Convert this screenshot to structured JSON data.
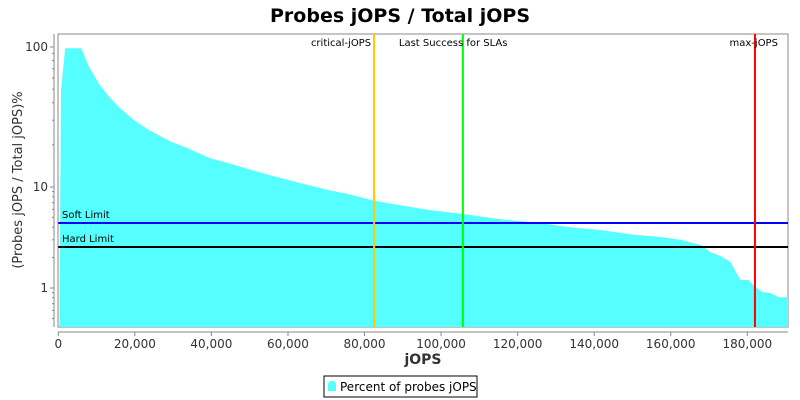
{
  "chart_data": {
    "type": "area",
    "title": "Probes jOPS / Total jOPS",
    "xlabel": "jOPS",
    "ylabel": "(Probes jOPS / Total jOPS)%",
    "xlim": [
      0,
      190650
    ],
    "ylim": [
      0.41,
      124
    ],
    "y_scale": "log",
    "x_ticks": [
      0,
      20000,
      40000,
      60000,
      80000,
      100000,
      120000,
      140000,
      160000,
      180000
    ],
    "x_tick_labels": [
      "0",
      "20,000",
      "40,000",
      "60,000",
      "80,000",
      "100,000",
      "120,000",
      "140,000",
      "160,000",
      "180,000"
    ],
    "y_ticks": [
      1,
      10,
      100
    ],
    "y_tick_labels": [
      "1",
      "10",
      "100"
    ],
    "grid": false,
    "legend_position": "bottom",
    "series": [
      {
        "name": "Percent of probes jOPS",
        "color": "#55ffff",
        "x": [
          300,
          700,
          1800,
          6000,
          7800,
          10700,
          13300,
          15900,
          19800,
          23700,
          29000,
          34200,
          39400,
          44600,
          49800,
          55000,
          60200,
          65500,
          70700,
          75900,
          82500,
          89300,
          97100,
          105700,
          115400,
          125900,
          133700,
          141600,
          149400,
          157300,
          162500,
          167700,
          170300,
          173000,
          175600,
          176900,
          178200,
          180300,
          182100,
          184000,
          186100,
          188200,
          190650
        ],
        "y": [
          0.41,
          49,
          98,
          98,
          74,
          54,
          44,
          37,
          30,
          25.5,
          21.3,
          18.7,
          16.1,
          14.8,
          13.4,
          12.2,
          11.2,
          10.3,
          9.3,
          8.5,
          7.3,
          6.6,
          5.9,
          5.4,
          4.8,
          4.4,
          4.0,
          3.75,
          3.4,
          3.2,
          3.0,
          2.67,
          2.27,
          2.07,
          1.81,
          1.47,
          1.2,
          1.2,
          1.02,
          0.91,
          0.89,
          0.81,
          0.81
        ]
      }
    ],
    "horizontal_markers": [
      {
        "label": "Soft Limit",
        "value": 4.4,
        "color": "#0000ff"
      },
      {
        "label": "Hard Limit",
        "value": 2.55,
        "color": "#000000"
      }
    ],
    "vertical_markers": [
      {
        "label": "critical-jOPS",
        "value": 82500,
        "color": "#ffc800"
      },
      {
        "label": "Last Success for SLAs",
        "value": 105700,
        "color": "#00ff00"
      },
      {
        "label": "max-jOPS",
        "value": 182000,
        "color": "#ff0000"
      }
    ]
  }
}
